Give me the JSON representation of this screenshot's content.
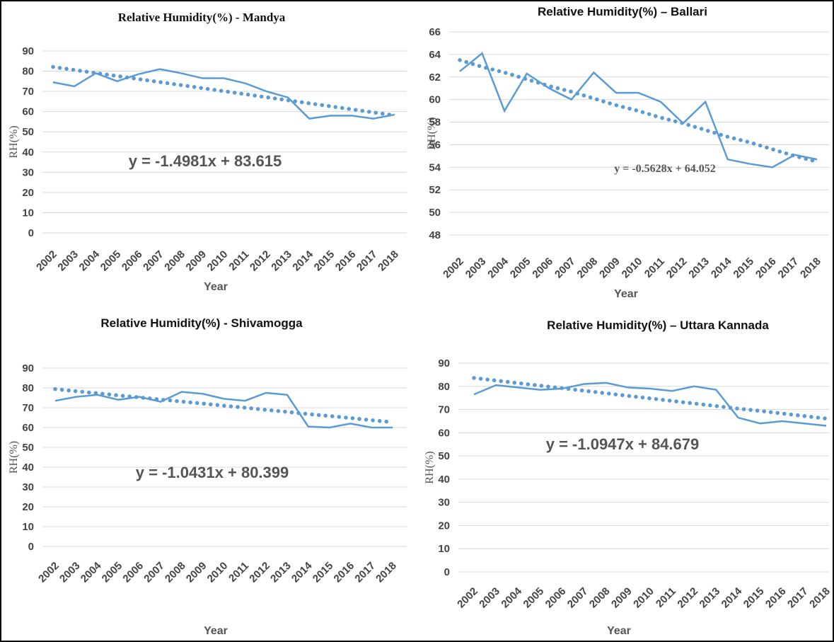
{
  "chart_data": [
    {
      "type": "line",
      "title": "Relative Humidity(%)  - Mandya",
      "x_label": "Year",
      "y_label": "RH(%)",
      "annotation": "y = -1.4981x + 83.615",
      "categories": [
        "2002",
        "2003",
        "2004",
        "2005",
        "2006",
        "2007",
        "2008",
        "2009",
        "2010",
        "2011",
        "2012",
        "2013",
        "2014",
        "2015",
        "2016",
        "2017",
        "2018"
      ],
      "series": [
        {
          "color": "#5b9bd5",
          "style": "solid",
          "values": [
            74.5,
            72.5,
            79,
            75,
            78.5,
            81,
            79,
            76.5,
            76.5,
            74,
            70,
            67,
            56.5,
            58,
            58,
            56.5,
            58.5
          ]
        },
        {
          "color": "#5b9bd5",
          "style": "dotted",
          "values": [
            82.1,
            80.6,
            79.1,
            77.6,
            76.1,
            74.6,
            73.1,
            71.6,
            70.1,
            68.6,
            67.1,
            65.6,
            64.1,
            62.6,
            61.1,
            59.6,
            58.1
          ]
        }
      ],
      "ylim": [
        0,
        90
      ],
      "yticks": [
        0,
        10,
        20,
        30,
        40,
        50,
        60,
        70,
        80,
        90
      ],
      "grid": true
    },
    {
      "type": "line",
      "title": "Relative Humidity(%) – Ballari",
      "x_label": "Year",
      "y_label": "RH(%)",
      "annotation": "y = -0.5628x + 64.052",
      "categories": [
        "2002",
        "2003",
        "2004",
        "2005",
        "2006",
        "2007",
        "2008",
        "2009",
        "2010",
        "2011",
        "2012",
        "2013",
        "2014",
        "2015",
        "2016",
        "2017",
        "2018"
      ],
      "series": [
        {
          "color": "#5b9bd5",
          "style": "solid",
          "values": [
            62.5,
            64.1,
            59,
            62.3,
            61,
            60,
            62.4,
            60.6,
            60.6,
            59.8,
            57.9,
            59.8,
            54.7,
            54.3,
            54,
            55.1,
            54.7
          ]
        },
        {
          "color": "#5b9bd5",
          "style": "dotted",
          "values": [
            63.5,
            62.9,
            62.4,
            61.8,
            61.2,
            60.7,
            60.1,
            59.5,
            59.0,
            58.4,
            57.9,
            57.3,
            56.7,
            56.2,
            55.6,
            55.0,
            54.5
          ]
        }
      ],
      "ylim": [
        48,
        66
      ],
      "yticks": [
        48,
        50,
        52,
        54,
        56,
        58,
        60,
        62,
        64,
        66
      ],
      "grid": true
    },
    {
      "type": "line",
      "title": "Relative Humidity(%) - Shivamogga",
      "x_label": "Year",
      "y_label": "RH(%)",
      "annotation": "y = -1.0431x + 80.399",
      "categories": [
        "2002",
        "2003",
        "2004",
        "2005",
        "2006",
        "2007",
        "2008",
        "2009",
        "2010",
        "2011",
        "2012",
        "2013",
        "2014",
        "2015",
        "2016",
        "2017",
        "2018"
      ],
      "series": [
        {
          "color": "#5b9bd5",
          "style": "solid",
          "values": [
            73.5,
            75.5,
            76.5,
            74,
            75.5,
            73,
            78,
            77,
            74.5,
            73.5,
            77.5,
            76.5,
            60.5,
            60,
            62,
            60,
            60
          ]
        },
        {
          "color": "#5b9bd5",
          "style": "dotted",
          "values": [
            79.4,
            78.3,
            77.3,
            76.2,
            75.2,
            74.1,
            73.1,
            72.1,
            71.0,
            70.0,
            68.9,
            67.9,
            66.8,
            65.8,
            64.8,
            63.7,
            62.7
          ]
        }
      ],
      "ylim": [
        0,
        90
      ],
      "yticks": [
        0,
        10,
        20,
        30,
        40,
        50,
        60,
        70,
        80,
        90
      ],
      "grid": true
    },
    {
      "type": "line",
      "title": "Relative Humidity(%) – Uttara Kannada",
      "x_label": "Year",
      "y_label": "RH(%)",
      "annotation": "y = -1.0947x + 84.679",
      "categories": [
        "2002",
        "2003",
        "2004",
        "2005",
        "2006",
        "2007",
        "2008",
        "2009",
        "2010",
        "2011",
        "2012",
        "2013",
        "2014",
        "2015",
        "2016",
        "2017",
        "2018"
      ],
      "series": [
        {
          "color": "#5b9bd5",
          "style": "solid",
          "values": [
            76.5,
            80.5,
            79.5,
            78.5,
            79,
            81,
            81.5,
            79.5,
            79,
            78,
            80,
            78.5,
            66.5,
            64,
            65,
            64,
            63
          ]
        },
        {
          "color": "#5b9bd5",
          "style": "dotted",
          "values": [
            83.6,
            82.5,
            81.4,
            80.3,
            79.2,
            78.1,
            77.0,
            75.9,
            74.8,
            73.7,
            72.6,
            71.5,
            70.4,
            69.4,
            68.3,
            67.2,
            66.1
          ]
        }
      ],
      "ylim": [
        0,
        90
      ],
      "yticks": [
        0,
        10,
        20,
        30,
        40,
        50,
        60,
        70,
        80,
        90
      ],
      "grid": true
    }
  ]
}
